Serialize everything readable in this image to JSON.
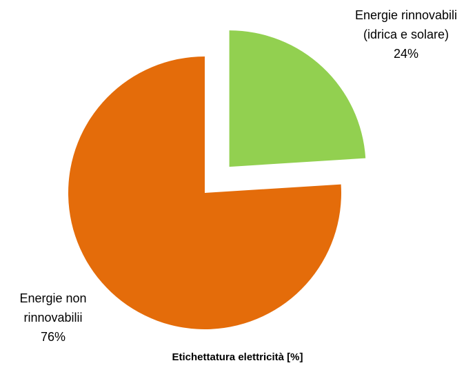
{
  "chart_data": {
    "type": "pie",
    "title": "Etichettatura elettricità [%]",
    "categories": [
      "Energie rinnovabili (idrica e solare)",
      "Energie non rinnovabilii"
    ],
    "values": [
      24,
      76
    ],
    "value_labels": [
      "24%",
      "76%"
    ],
    "colors": [
      "#92d050",
      "#e46c0a"
    ],
    "exploded": [
      true,
      false
    ]
  }
}
